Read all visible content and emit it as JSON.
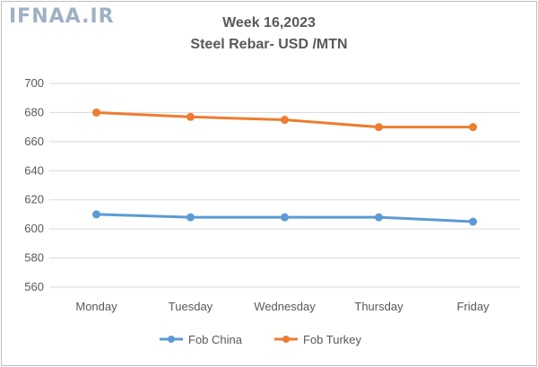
{
  "watermark": "IFNAA.IR",
  "chart_data": {
    "type": "line",
    "title": "Week 16,2023",
    "subtitle": "Steel Rebar- USD /MTN",
    "categories": [
      "Monday",
      "Tuesday",
      "Wednesday",
      "Thursday",
      "Friday"
    ],
    "series": [
      {
        "name": "Fob China",
        "values": [
          610,
          608,
          608,
          608,
          605
        ],
        "color": "#5b9bd5"
      },
      {
        "name": "Fob Turkey",
        "values": [
          680,
          677,
          675,
          670,
          670
        ],
        "color": "#ed7d31"
      }
    ],
    "ylim": [
      560,
      700
    ],
    "yticks": [
      560,
      580,
      600,
      620,
      640,
      660,
      680,
      700
    ],
    "grid": true,
    "legend": "bottom"
  }
}
